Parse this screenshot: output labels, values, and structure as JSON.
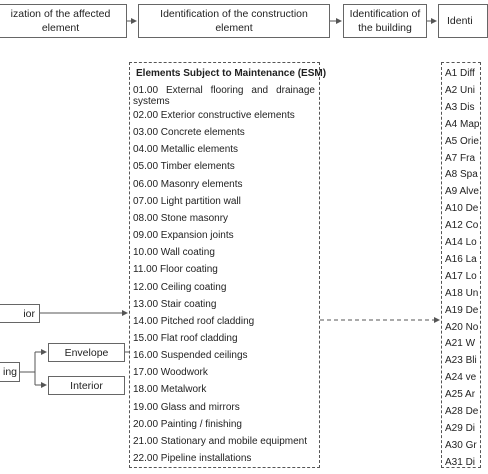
{
  "header": {
    "boxes": [
      "ization of the affected element",
      "Identification of the construction element",
      "Identification of the building",
      "Identi"
    ]
  },
  "left": {
    "labels": [
      "ior",
      "ing"
    ],
    "branches": [
      "Envelope",
      "Interior"
    ]
  },
  "esm": {
    "title": "Elements Subject to Maintenance (ESM)",
    "items": [
      "01.00 External flooring and drainage systems",
      "02.00 Exterior constructive elements",
      "03.00 Concrete elements",
      "04.00 Metallic elements",
      "05.00 Timber elements",
      "06.00 Masonry elements",
      "07.00 Light partition wall",
      "08.00 Stone masonry",
      "09.00 Expansion joints",
      "10.00 Wall coating",
      "11.00 Floor coating",
      "12.00 Ceiling coating",
      "13.00 Stair coating",
      "14.00 Pitched roof cladding",
      "15.00 Flat roof cladding",
      "16.00 Suspended ceilings",
      "17.00 Woodwork",
      "18.00 Metalwork",
      "19.00 Glass and mirrors",
      "20.00 Painting / finishing",
      "21.00 Stationary and mobile equipment",
      "22.00 Pipeline installations"
    ]
  },
  "codes": {
    "items": [
      "A1 Diff",
      "A2 Uni",
      "A3 Dis",
      "A4 Map",
      "A5 Orie",
      "A7 Fra",
      "A8 Spa",
      "A9 Alve",
      "A10 De",
      "A12 Co",
      "A14 Lo",
      "A16 La",
      "A17 Lo",
      "A18 Un",
      "A19 De",
      "A20 No",
      "A21 W",
      "A23 Bli",
      "A24 ve",
      "A25 Ar",
      "A28 De",
      "A29 Di",
      "A30 Gr",
      "A31 Di"
    ]
  }
}
